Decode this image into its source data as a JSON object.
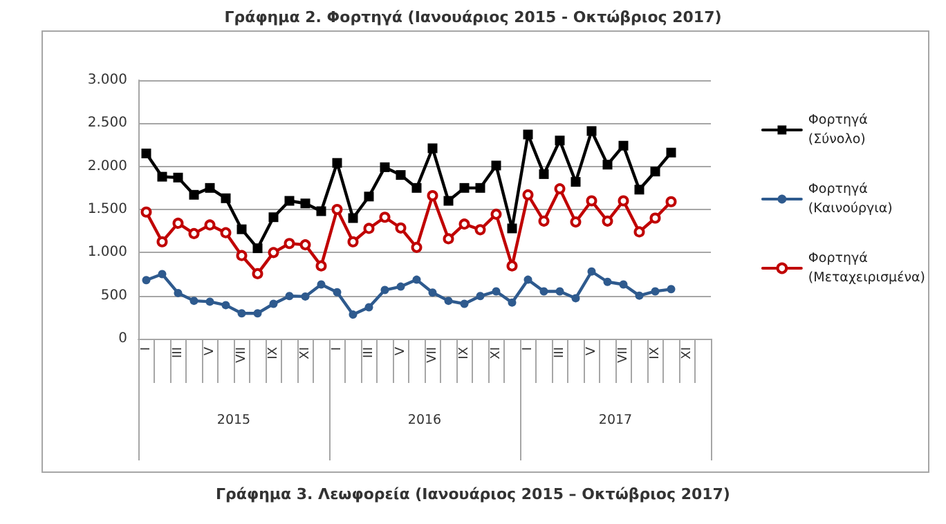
{
  "chart_data": {
    "type": "line",
    "title": "Γράφημα 2. Φορτηγά (Ιανουάριος 2015 - Οκτώβριος 2017)",
    "categories": [
      "I",
      null,
      "III",
      null,
      "V",
      null,
      "VII",
      null,
      "IX",
      null,
      "XI",
      null,
      "I",
      null,
      "III",
      null,
      "V",
      null,
      "VII",
      null,
      "IX",
      null,
      "XI",
      null,
      "I",
      null,
      "III",
      null,
      "V",
      null,
      "VII",
      null,
      "IX",
      null,
      "XI",
      null
    ],
    "series": [
      {
        "name": "Φορτηγά (Σύνολο)",
        "color": "#000000",
        "marker": "square",
        "values": [
          2150,
          1880,
          1870,
          1670,
          1750,
          1630,
          1270,
          1050,
          1410,
          1600,
          1570,
          1480,
          2040,
          1400,
          1650,
          1990,
          1900,
          1750,
          2210,
          1600,
          1750,
          1750,
          2010,
          1280,
          2370,
          1910,
          2300,
          1820,
          2410,
          2020,
          2240,
          1730,
          1940,
          2160,
          null,
          null
        ]
      },
      {
        "name": "Φορτηγά (Καινούργια)",
        "color": "#2e5a8e",
        "marker": "circle",
        "values": [
          680,
          750,
          530,
          440,
          430,
          390,
          295,
          295,
          405,
          495,
          490,
          630,
          540,
          280,
          365,
          565,
          605,
          685,
          535,
          440,
          405,
          495,
          550,
          420,
          685,
          550,
          550,
          470,
          780,
          660,
          630,
          500,
          550,
          575,
          null,
          null
        ]
      },
      {
        "name": "Φορτηγά (Μεταχειρισμένα)",
        "color": "#c00000",
        "marker": "circle-open",
        "values": [
          1470,
          1125,
          1340,
          1220,
          1320,
          1230,
          965,
          755,
          1000,
          1105,
          1090,
          845,
          1500,
          1125,
          1280,
          1410,
          1285,
          1060,
          1660,
          1160,
          1330,
          1265,
          1445,
          845,
          1670,
          1365,
          1740,
          1355,
          1600,
          1365,
          1600,
          1240,
          1400,
          1590,
          null,
          null
        ]
      }
    ],
    "ylim": [
      0,
      3000
    ],
    "yticks": [
      {
        "value": 0,
        "label": "0"
      },
      {
        "value": 500,
        "label": "500"
      },
      {
        "value": 1000,
        "label": "1.000"
      },
      {
        "value": 1500,
        "label": "1.500"
      },
      {
        "value": 2000,
        "label": "2.000"
      },
      {
        "value": 2500,
        "label": "2.500"
      },
      {
        "value": 3000,
        "label": "3.000"
      }
    ],
    "grid": "y",
    "legend": "right",
    "line_style": "solid",
    "annotations": [
      "2015",
      "2016",
      "2017",
      "Γράφημα 3. Λεωφορεία (Ιανουάριος 2015 – Οκτώβριος 2017)"
    ]
  }
}
